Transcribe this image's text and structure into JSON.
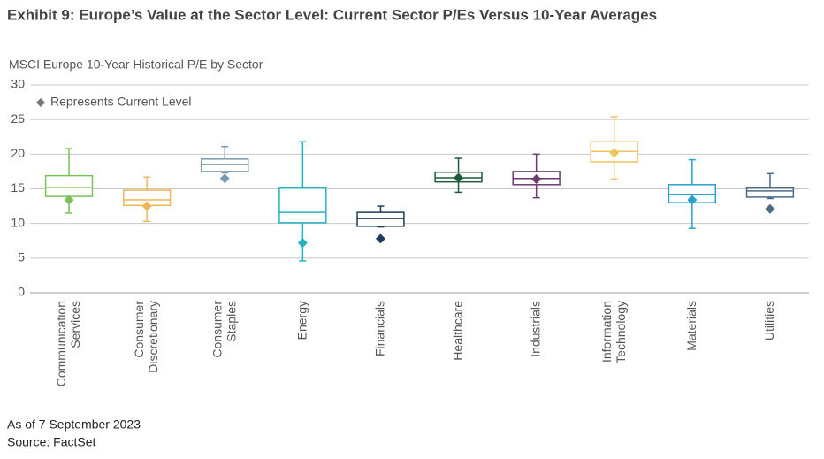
{
  "chart_data": {
    "type": "box",
    "title": "Exhibit 9: Europe’s Value at the Sector Level: Current Sector P/Es Versus 10-Year Averages",
    "subtitle": "MSCI Europe 10-Year Historical P/E by Sector",
    "legend": {
      "label": "Represents Current Level",
      "color": "#777777",
      "position": "upper left"
    },
    "categories": [
      "Communication Services",
      "Consumer Discretionary",
      "Consumer Staples",
      "Energy",
      "Financials",
      "Healthcare",
      "Industrials",
      "Information Technology",
      "Materials",
      "Utilities"
    ],
    "boxes": [
      {
        "whisker_low": 11.5,
        "q1": 13.9,
        "median": 15.2,
        "q3": 16.9,
        "whisker_high": 20.8,
        "current": 13.4,
        "color": "#7cc05a"
      },
      {
        "whisker_low": 10.3,
        "q1": 12.6,
        "median": 13.4,
        "q3": 14.8,
        "whisker_high": 16.7,
        "current": 12.5,
        "color": "#f0b656"
      },
      {
        "whisker_low": 17.3,
        "q1": 17.5,
        "median": 18.5,
        "q3": 19.3,
        "whisker_high": 21.1,
        "current": 16.5,
        "color": "#7b97ab"
      },
      {
        "whisker_low": 4.6,
        "q1": 10.1,
        "median": 11.6,
        "q3": 15.1,
        "whisker_high": 21.8,
        "current": 7.2,
        "color": "#26b3c0"
      },
      {
        "whisker_low": 9.5,
        "q1": 9.6,
        "median": 10.7,
        "q3": 11.6,
        "whisker_high": 12.5,
        "current": 7.8,
        "color": "#1d3b5a"
      },
      {
        "whisker_low": 14.5,
        "q1": 16.0,
        "median": 16.6,
        "q3": 17.4,
        "whisker_high": 19.4,
        "current": 16.6,
        "color": "#1f5b3a"
      },
      {
        "whisker_low": 13.7,
        "q1": 15.6,
        "median": 16.5,
        "q3": 17.5,
        "whisker_high": 20.0,
        "current": 16.4,
        "color": "#6b3b6e"
      },
      {
        "whisker_low": 16.4,
        "q1": 18.9,
        "median": 20.4,
        "q3": 21.8,
        "whisker_high": 25.4,
        "current": 20.2,
        "color": "#f2c45d"
      },
      {
        "whisker_low": 9.3,
        "q1": 13.0,
        "median": 14.2,
        "q3": 15.6,
        "whisker_high": 19.2,
        "current": 13.4,
        "color": "#2aa0cc"
      },
      {
        "whisker_low": 13.6,
        "q1": 13.8,
        "median": 14.7,
        "q3": 15.1,
        "whisker_high": 17.2,
        "current": 12.1,
        "color": "#4b6a86"
      }
    ],
    "ylim": [
      0,
      30
    ],
    "yticks": [
      0,
      5,
      10,
      15,
      20,
      25,
      30
    ],
    "grid": true,
    "notes": [
      "As of 7 September 2023",
      "Source: FactSet"
    ]
  }
}
